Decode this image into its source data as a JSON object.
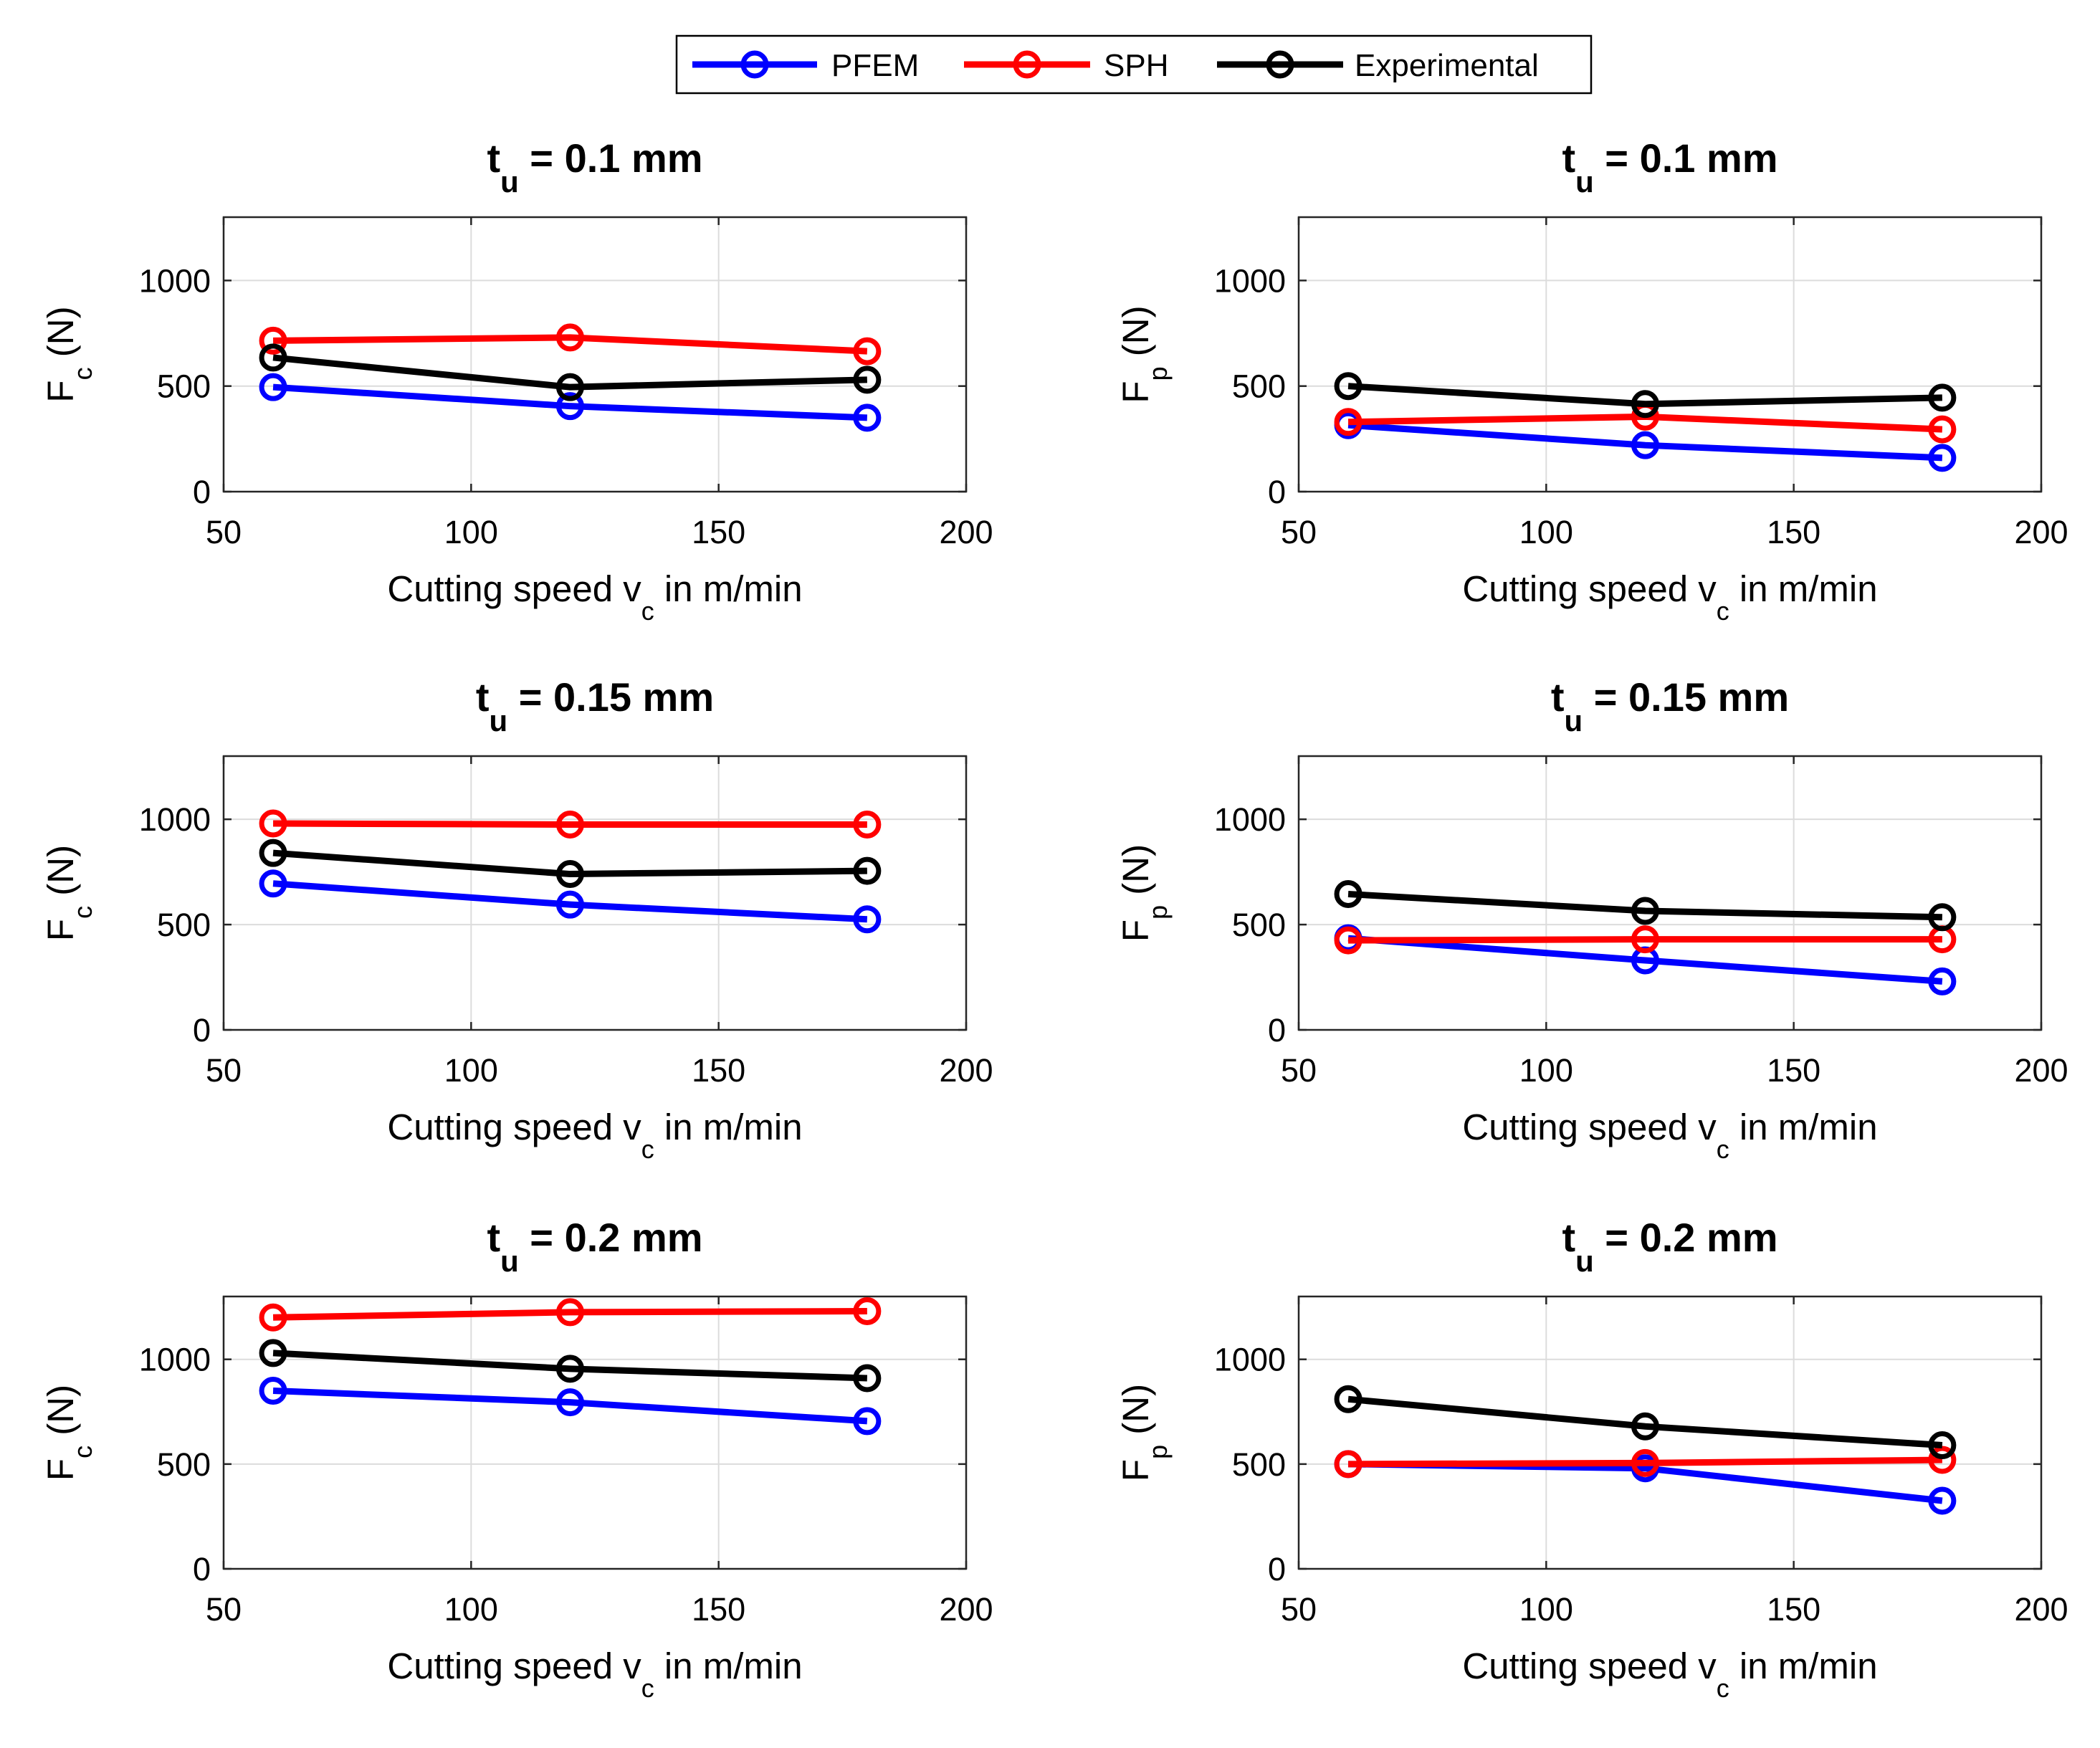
{
  "legend": {
    "entries": [
      {
        "name": "PFEM",
        "color": "#0000ff"
      },
      {
        "name": "SPH",
        "color": "#ff0000"
      },
      {
        "name": "Experimental",
        "color": "#000000"
      }
    ]
  },
  "chart_data": [
    {
      "type": "line",
      "title": {
        "main": "t",
        "sub": "u",
        "rest": " = 0.1 mm"
      },
      "ylabel": {
        "main": "F",
        "sub": "c",
        "rest": " (N)"
      },
      "xlabel": {
        "main": "Cutting speed v",
        "sub": "c",
        "rest": " in m/min"
      },
      "x": [
        60,
        120,
        180
      ],
      "xlim": [
        50,
        200
      ],
      "ylim": [
        0,
        1300
      ],
      "xticks": [
        50,
        100,
        150,
        200
      ],
      "yticks": [
        0,
        500,
        1000
      ],
      "grid": true,
      "series": [
        {
          "name": "PFEM",
          "values": [
            495,
            405,
            350
          ]
        },
        {
          "name": "SPH",
          "values": [
            715,
            730,
            665
          ]
        },
        {
          "name": "Experimental",
          "values": [
            635,
            495,
            530
          ]
        }
      ]
    },
    {
      "type": "line",
      "title": {
        "main": "t",
        "sub": "u",
        "rest": " = 0.1 mm"
      },
      "ylabel": {
        "main": "F",
        "sub": "p",
        "rest": " (N)"
      },
      "xlabel": {
        "main": "Cutting speed v",
        "sub": "c",
        "rest": " in m/min"
      },
      "x": [
        60,
        120,
        180
      ],
      "xlim": [
        50,
        200
      ],
      "ylim": [
        0,
        1300
      ],
      "xticks": [
        50,
        100,
        150,
        200
      ],
      "yticks": [
        0,
        500,
        1000
      ],
      "grid": true,
      "series": [
        {
          "name": "PFEM",
          "values": [
            315,
            220,
            160
          ]
        },
        {
          "name": "SPH",
          "values": [
            330,
            355,
            295
          ]
        },
        {
          "name": "Experimental",
          "values": [
            500,
            415,
            445
          ]
        }
      ]
    },
    {
      "type": "line",
      "title": {
        "main": "t",
        "sub": "u",
        "rest": " = 0.15 mm"
      },
      "ylabel": {
        "main": "F",
        "sub": "c",
        "rest": " (N)"
      },
      "xlabel": {
        "main": "Cutting speed v",
        "sub": "c",
        "rest": " in m/min"
      },
      "x": [
        60,
        120,
        180
      ],
      "xlim": [
        50,
        200
      ],
      "ylim": [
        0,
        1300
      ],
      "xticks": [
        50,
        100,
        150,
        200
      ],
      "yticks": [
        0,
        500,
        1000
      ],
      "grid": true,
      "series": [
        {
          "name": "PFEM",
          "values": [
            695,
            595,
            525
          ]
        },
        {
          "name": "SPH",
          "values": [
            980,
            975,
            975
          ]
        },
        {
          "name": "Experimental",
          "values": [
            840,
            740,
            755
          ]
        }
      ]
    },
    {
      "type": "line",
      "title": {
        "main": "t",
        "sub": "u",
        "rest": " = 0.15 mm"
      },
      "ylabel": {
        "main": "F",
        "sub": "p",
        "rest": " (N)"
      },
      "xlabel": {
        "main": "Cutting speed v",
        "sub": "c",
        "rest": " in m/min"
      },
      "x": [
        60,
        120,
        180
      ],
      "xlim": [
        50,
        200
      ],
      "ylim": [
        0,
        1300
      ],
      "xticks": [
        50,
        100,
        150,
        200
      ],
      "yticks": [
        0,
        500,
        1000
      ],
      "grid": true,
      "series": [
        {
          "name": "PFEM",
          "values": [
            435,
            330,
            230
          ]
        },
        {
          "name": "SPH",
          "values": [
            425,
            430,
            430
          ]
        },
        {
          "name": "Experimental",
          "values": [
            645,
            565,
            535
          ]
        }
      ]
    },
    {
      "type": "line",
      "title": {
        "main": "t",
        "sub": "u",
        "rest": " = 0.2 mm"
      },
      "ylabel": {
        "main": "F",
        "sub": "c",
        "rest": " (N)"
      },
      "xlabel": {
        "main": "Cutting speed v",
        "sub": "c",
        "rest": " in m/min"
      },
      "x": [
        60,
        120,
        180
      ],
      "xlim": [
        50,
        200
      ],
      "ylim": [
        0,
        1300
      ],
      "xticks": [
        50,
        100,
        150,
        200
      ],
      "yticks": [
        0,
        500,
        1000
      ],
      "grid": true,
      "series": [
        {
          "name": "PFEM",
          "values": [
            850,
            795,
            705
          ]
        },
        {
          "name": "SPH",
          "values": [
            1200,
            1225,
            1230
          ]
        },
        {
          "name": "Experimental",
          "values": [
            1030,
            955,
            910
          ]
        }
      ]
    },
    {
      "type": "line",
      "title": {
        "main": "t",
        "sub": "u",
        "rest": " = 0.2 mm"
      },
      "ylabel": {
        "main": "F",
        "sub": "p",
        "rest": " (N)"
      },
      "xlabel": {
        "main": "Cutting speed v",
        "sub": "c",
        "rest": " in m/min"
      },
      "x": [
        60,
        120,
        180
      ],
      "xlim": [
        50,
        200
      ],
      "ylim": [
        0,
        1300
      ],
      "xticks": [
        50,
        100,
        150,
        200
      ],
      "yticks": [
        0,
        500,
        1000
      ],
      "grid": true,
      "series": [
        {
          "name": "PFEM",
          "values": [
            500,
            480,
            325
          ]
        },
        {
          "name": "SPH",
          "values": [
            500,
            505,
            520
          ]
        },
        {
          "name": "Experimental",
          "values": [
            810,
            680,
            590
          ]
        }
      ]
    }
  ]
}
